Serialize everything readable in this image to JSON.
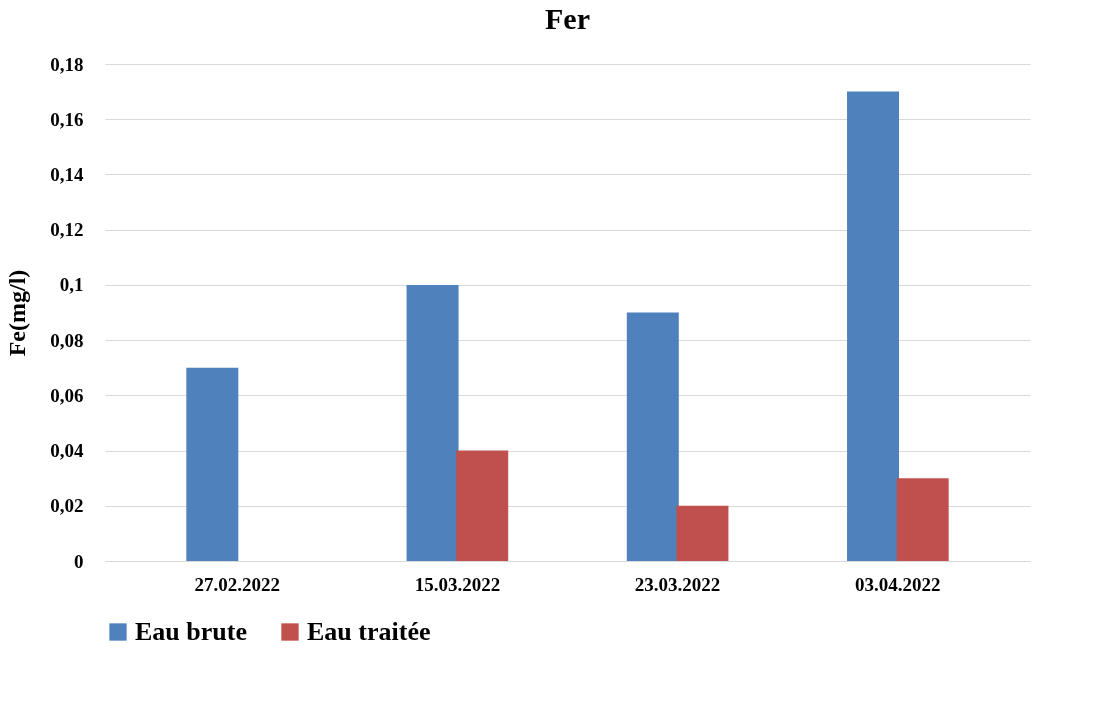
{
  "chart_data": {
    "type": "bar",
    "title": "Fer",
    "ylabel": "Fe(mg/l)",
    "categories": [
      "27.02.2022",
      "15.03.2022",
      "23.03.2022",
      "03.04.2022"
    ],
    "series": [
      {
        "name": "Eau brute",
        "color": "#4f81bd",
        "values": [
          0.07,
          0.1,
          0.09,
          0.17
        ]
      },
      {
        "name": "Eau traitée",
        "color": "#c0504d",
        "values": [
          null,
          0.04,
          0.02,
          0.03
        ]
      }
    ],
    "ylim": [
      0,
      0.18
    ],
    "yticks": [
      0,
      {
        "value": 0.02,
        "label": "0,02"
      },
      {
        "value": 0.04,
        "label": "0,04"
      },
      {
        "value": 0.06,
        "label": "0,06"
      },
      {
        "value": 0.08,
        "label": "0,08"
      },
      {
        "value": 0.1,
        "label": "0,1"
      },
      {
        "value": 0.12,
        "label": "0,12"
      },
      {
        "value": 0.14,
        "label": "0,14"
      },
      {
        "value": 0.16,
        "label": "0,16"
      },
      {
        "value": 0.18,
        "label": "0,18"
      }
    ],
    "grid": "y",
    "legend": "bottom"
  }
}
